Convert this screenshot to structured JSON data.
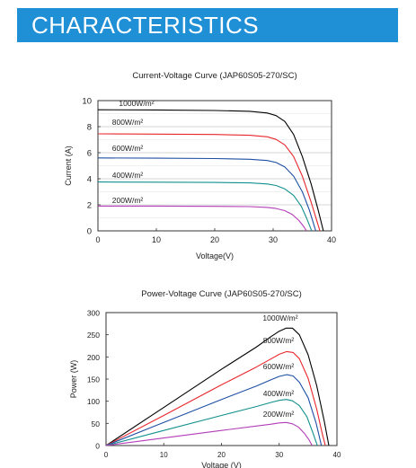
{
  "header": {
    "title": "CHARACTERISTICS"
  },
  "colors": {
    "banner": "#1f8fd6",
    "series": [
      "#000000",
      "#e8262c",
      "#1e4fa3",
      "#12908e",
      "#b33cb8"
    ]
  },
  "chart_data": [
    {
      "type": "line",
      "title": "Current-Voltage Curve (JAP60S05-270/SC)",
      "xlabel": "Voltage(V)",
      "ylabel": "Current (A)",
      "xlim": [
        0,
        40
      ],
      "ylim": [
        0,
        10
      ],
      "xticks": [
        "0",
        "10",
        "20",
        "30",
        "40"
      ],
      "yticks": [
        "0",
        "2",
        "4",
        "6",
        "8",
        "10"
      ],
      "grid": "horizontal",
      "series": [
        {
          "name": "1000W/m²",
          "points": [
            [
              0,
              9.3
            ],
            [
              10,
              9.28
            ],
            [
              20,
              9.24
            ],
            [
              26,
              9.18
            ],
            [
              29,
              9.05
            ],
            [
              30.5,
              8.85
            ],
            [
              32,
              8.4
            ],
            [
              33.5,
              7.4
            ],
            [
              35,
              5.7
            ],
            [
              36.5,
              3.6
            ],
            [
              37.7,
              1.6
            ],
            [
              38.6,
              0
            ]
          ]
        },
        {
          "name": "800W/m²",
          "points": [
            [
              0,
              7.45
            ],
            [
              10,
              7.43
            ],
            [
              20,
              7.4
            ],
            [
              26,
              7.34
            ],
            [
              29,
              7.22
            ],
            [
              30.5,
              7.02
            ],
            [
              32,
              6.6
            ],
            [
              33.5,
              5.7
            ],
            [
              35,
              4.2
            ],
            [
              36.5,
              2.2
            ],
            [
              37.6,
              0.6
            ],
            [
              38.0,
              0
            ]
          ]
        },
        {
          "name": "600W/m²",
          "points": [
            [
              0,
              5.6
            ],
            [
              10,
              5.58
            ],
            [
              20,
              5.55
            ],
            [
              26,
              5.5
            ],
            [
              29,
              5.4
            ],
            [
              30.5,
              5.25
            ],
            [
              32,
              4.9
            ],
            [
              33.5,
              4.2
            ],
            [
              35,
              3.0
            ],
            [
              36.2,
              1.6
            ],
            [
              37.3,
              0
            ]
          ]
        },
        {
          "name": "400W/m²",
          "points": [
            [
              0,
              3.75
            ],
            [
              10,
              3.74
            ],
            [
              20,
              3.72
            ],
            [
              26,
              3.68
            ],
            [
              29,
              3.6
            ],
            [
              30.5,
              3.48
            ],
            [
              32,
              3.22
            ],
            [
              33.5,
              2.72
            ],
            [
              34.8,
              1.9
            ],
            [
              35.8,
              0.9
            ],
            [
              36.6,
              0
            ]
          ]
        },
        {
          "name": "200W/m²",
          "points": [
            [
              0,
              1.9
            ],
            [
              10,
              1.9
            ],
            [
              20,
              1.88
            ],
            [
              26,
              1.86
            ],
            [
              29,
              1.8
            ],
            [
              30.5,
              1.72
            ],
            [
              32,
              1.55
            ],
            [
              33.3,
              1.25
            ],
            [
              34.4,
              0.8
            ],
            [
              35.2,
              0.35
            ],
            [
              35.7,
              0
            ]
          ]
        }
      ]
    },
    {
      "type": "line",
      "title": "Power-Voltage Curve (JAP60S05-270/SC)",
      "xlabel": "Voltage (V)",
      "ylabel": "Power (W)",
      "xlim": [
        0,
        40
      ],
      "ylim": [
        0,
        300
      ],
      "xticks": [
        "0",
        "10",
        "20",
        "30",
        "40"
      ],
      "yticks": [
        "0",
        "50",
        "100",
        "150",
        "200",
        "250",
        "300"
      ],
      "grid": "none",
      "series": [
        {
          "name": "1000W/m²",
          "points": [
            [
              0,
              0
            ],
            [
              10,
              86
            ],
            [
              20,
              172
            ],
            [
              26,
              222
            ],
            [
              28.5,
              245
            ],
            [
              30,
              258
            ],
            [
              31.2,
              265
            ],
            [
              32.3,
              265
            ],
            [
              33.5,
              250
            ],
            [
              35,
              205
            ],
            [
              36.5,
              135
            ],
            [
              37.8,
              55
            ],
            [
              38.6,
              0
            ]
          ]
        },
        {
          "name": "800W/m²",
          "points": [
            [
              0,
              0
            ],
            [
              10,
              68
            ],
            [
              20,
              137
            ],
            [
              26,
              177
            ],
            [
              28.5,
              195
            ],
            [
              30,
              206
            ],
            [
              31.3,
              212
            ],
            [
              32.4,
              210
            ],
            [
              33.5,
              196
            ],
            [
              35,
              152
            ],
            [
              36.5,
              82
            ],
            [
              37.5,
              25
            ],
            [
              38.0,
              0
            ]
          ]
        },
        {
          "name": "600W/m²",
          "points": [
            [
              0,
              0
            ],
            [
              10,
              52
            ],
            [
              20,
              104
            ],
            [
              26,
              134
            ],
            [
              28.5,
              148
            ],
            [
              30,
              156
            ],
            [
              31.3,
              160
            ],
            [
              32.4,
              157
            ],
            [
              33.5,
              143
            ],
            [
              35,
              108
            ],
            [
              36.4,
              50
            ],
            [
              37.3,
              0
            ]
          ]
        },
        {
          "name": "400W/m²",
          "points": [
            [
              0,
              0
            ],
            [
              10,
              34
            ],
            [
              20,
              68
            ],
            [
              26,
              88
            ],
            [
              28.5,
              97
            ],
            [
              30,
              102
            ],
            [
              31.2,
              104
            ],
            [
              32.3,
              101
            ],
            [
              33.5,
              90
            ],
            [
              34.8,
              65
            ],
            [
              35.8,
              30
            ],
            [
              36.6,
              0
            ]
          ]
        },
        {
          "name": "200W/m²",
          "points": [
            [
              0,
              0
            ],
            [
              10,
              17
            ],
            [
              20,
              34
            ],
            [
              26,
              44
            ],
            [
              28.5,
              48
            ],
            [
              30,
              51
            ],
            [
              31.2,
              52
            ],
            [
              32.3,
              49
            ],
            [
              33.3,
              42
            ],
            [
              34.4,
              27
            ],
            [
              35.2,
              12
            ],
            [
              35.7,
              0
            ]
          ]
        }
      ]
    }
  ]
}
